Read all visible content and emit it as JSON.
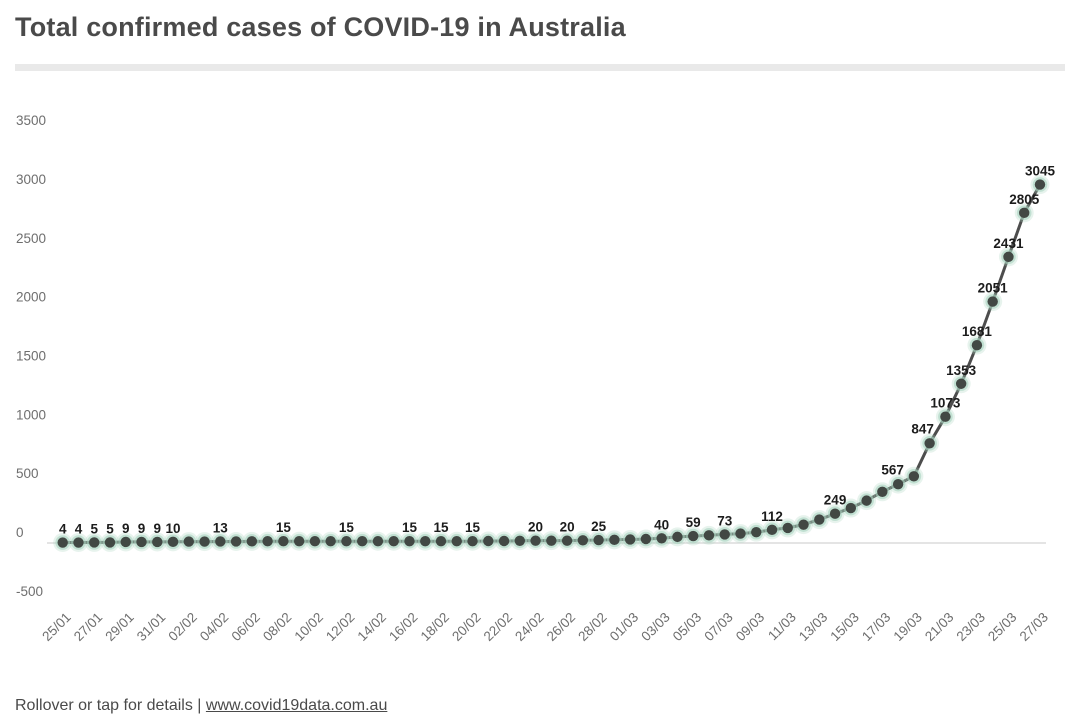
{
  "header": {
    "title": "Total confirmed cases of COVID-19 in Australia"
  },
  "footer": {
    "hint": "Rollover or tap for details",
    "separator": " | ",
    "link": "www.covid19data.com.au"
  },
  "colors": {
    "title_text": "#4a4a4a",
    "divider": "#e9e9e9",
    "axis_text": "#6e6e6e",
    "zero_gridline": "#dcdcdc",
    "line": "#4d4d4d",
    "point_core": "#424844",
    "point_halo": "#a9d3c0",
    "data_label": "#1c1c1c",
    "background": "#ffffff"
  },
  "chart_data": {
    "type": "line",
    "title": "Total confirmed cases of COVID-19 in Australia",
    "xlabel": "",
    "ylabel": "",
    "x": [
      "25/01",
      "26/01",
      "27/01",
      "28/01",
      "29/01",
      "30/01",
      "31/01",
      "01/02",
      "02/02",
      "03/02",
      "04/02",
      "05/02",
      "06/02",
      "07/02",
      "08/02",
      "09/02",
      "10/02",
      "11/02",
      "12/02",
      "13/02",
      "14/02",
      "15/02",
      "16/02",
      "17/02",
      "18/02",
      "19/02",
      "20/02",
      "21/02",
      "22/02",
      "23/02",
      "24/02",
      "25/02",
      "26/02",
      "27/02",
      "28/02",
      "29/02",
      "01/03",
      "02/03",
      "03/03",
      "04/03",
      "05/03",
      "06/03",
      "07/03",
      "08/03",
      "09/03",
      "10/03",
      "11/03",
      "12/03",
      "13/03",
      "14/03",
      "15/03",
      "16/03",
      "17/03",
      "18/03",
      "19/03",
      "20/03",
      "21/03",
      "22/03",
      "23/03",
      "24/03",
      "25/03",
      "26/03",
      "27/03"
    ],
    "values": [
      4,
      4,
      5,
      5,
      9,
      9,
      9,
      10,
      12,
      12,
      13,
      13,
      14,
      15,
      15,
      15,
      15,
      15,
      15,
      15,
      15,
      15,
      15,
      15,
      15,
      15,
      15,
      17,
      17,
      19,
      20,
      20,
      20,
      23,
      25,
      27,
      30,
      34,
      40,
      52,
      59,
      65,
      73,
      80,
      92,
      112,
      128,
      156,
      199,
      249,
      297,
      360,
      435,
      500,
      567,
      847,
      1073,
      1353,
      1681,
      2051,
      2431,
      2805,
      3045
    ],
    "labeled_point_indices": [
      0,
      1,
      2,
      3,
      4,
      5,
      6,
      7,
      10,
      14,
      18,
      22,
      24,
      26,
      30,
      32,
      34,
      38,
      40,
      42,
      45,
      49,
      54,
      55,
      56,
      57,
      58,
      59,
      60,
      61,
      62
    ],
    "x_tick_labels": [
      "25/01",
      "27/01",
      "29/01",
      "31/01",
      "02/02",
      "04/02",
      "06/02",
      "08/02",
      "10/02",
      "12/02",
      "14/02",
      "16/02",
      "18/02",
      "20/02",
      "22/02",
      "24/02",
      "26/02",
      "28/02",
      "01/03",
      "03/03",
      "05/03",
      "07/03",
      "09/03",
      "11/03",
      "13/03",
      "15/03",
      "17/03",
      "19/03",
      "21/03",
      "23/03",
      "25/03",
      "27/03"
    ],
    "yticks": [
      3500,
      3000,
      2500,
      2000,
      1500,
      1000,
      500,
      0,
      -500
    ],
    "ylim": [
      -500,
      3500
    ],
    "grid": "zero-line-only",
    "legend": "none"
  }
}
